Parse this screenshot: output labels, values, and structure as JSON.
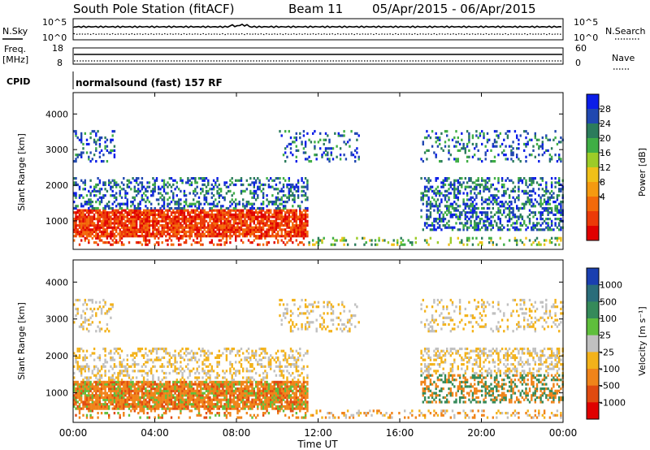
{
  "header": {
    "station": "South Pole Station (fitACF)",
    "beam": "Beam 11",
    "dates": "05/Apr/2015 - 06/Apr/2015"
  },
  "top_panels": {
    "nsky_label": "N.Sky",
    "nsearch_label": "N.Search",
    "noise_left_ticks": [
      "10^5",
      "10^0"
    ],
    "noise_right_ticks": [
      "10^5",
      "10^0"
    ],
    "freq_label_1": "Freq.",
    "freq_label_2": "[MHz]",
    "freq_ticks": [
      "18",
      "8"
    ],
    "nave_label": "Nave",
    "nave_ticks": [
      "60",
      "0"
    ],
    "cpid_label": "CPID",
    "cpid_text": "normalsound (fast) 157 RF"
  },
  "chart_data": [
    {
      "type": "heatmap",
      "name": "power",
      "ylabel": "Slant Range [km]",
      "ylim": [
        200,
        4600
      ],
      "yticks": [
        "4000",
        "3000",
        "2000",
        "1000"
      ],
      "colorbar_label": "Power [dB]",
      "colorbar_ticks": [
        "28",
        "24",
        "20",
        "16",
        "12",
        "8",
        "4"
      ],
      "colorbar_colors": [
        "#0b1de8",
        "#2048b0",
        "#2b7c5c",
        "#3fae45",
        "#9ccc28",
        "#f0c018",
        "#f59a10",
        "#f36a0a",
        "#ec3a08",
        "#e00000"
      ]
    },
    {
      "type": "heatmap",
      "name": "velocity",
      "ylabel": "Slant Range [km]",
      "ylim": [
        200,
        4600
      ],
      "yticks": [
        "4000",
        "3000",
        "2000",
        "1000"
      ],
      "colorbar_label": "Velocity [m s⁻¹]",
      "colorbar_ticks": [
        "1000",
        "500",
        "100",
        "25",
        "-25",
        "-100",
        "-500",
        "-1000"
      ],
      "colorbar_colors": [
        "#1a3fb0",
        "#2a6d7a",
        "#358a5a",
        "#5fbf3c",
        "#c0c0c0",
        "#f3b21a",
        "#f0841a",
        "#e04a10",
        "#e00000"
      ],
      "xlabel": "Time UT",
      "xticks": [
        "00:00",
        "04:00",
        "08:00",
        "12:00",
        "16:00",
        "20:00",
        "00:00"
      ]
    }
  ]
}
